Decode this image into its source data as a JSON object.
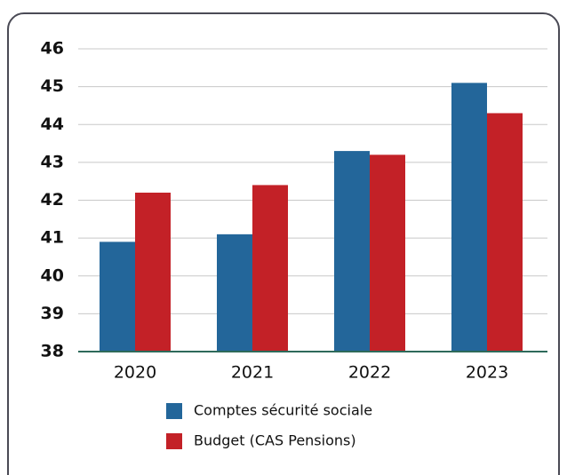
{
  "chart_data": {
    "type": "bar",
    "categories": [
      "2020",
      "2021",
      "2022",
      "2023"
    ],
    "series": [
      {
        "name": "Comptes sécurité sociale",
        "color": "#23669a",
        "values": [
          40.9,
          41.1,
          43.3,
          45.1
        ]
      },
      {
        "name": "Budget (CAS Pensions)",
        "color": "#c32127",
        "values": [
          42.2,
          42.4,
          43.2,
          44.3
        ]
      }
    ],
    "ylim": [
      38,
      46
    ],
    "yticks": [
      38,
      39,
      40,
      41,
      42,
      43,
      44,
      45,
      46
    ],
    "grid": true
  }
}
